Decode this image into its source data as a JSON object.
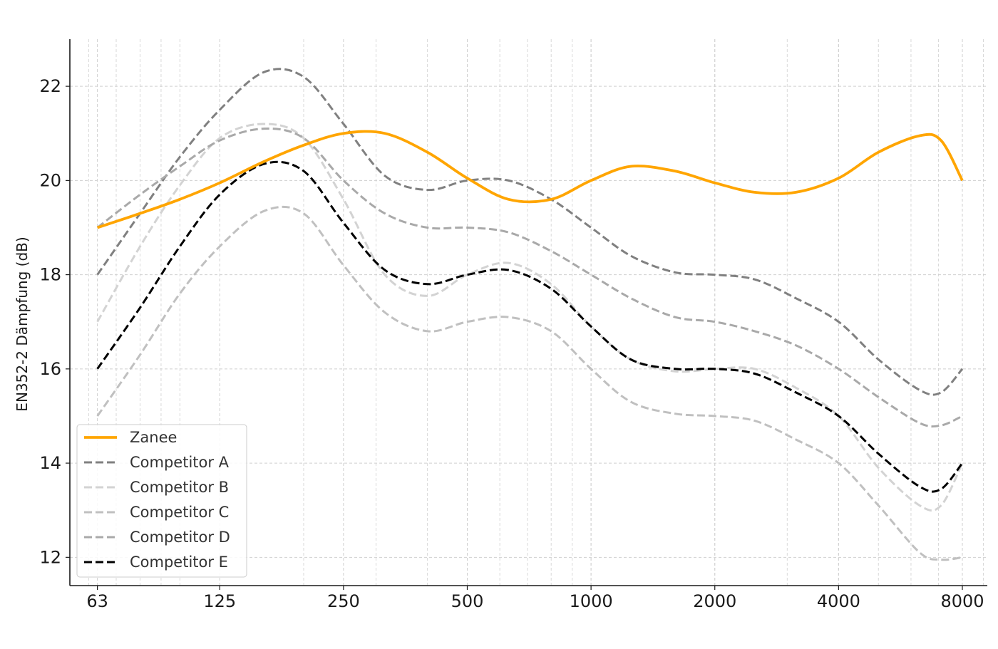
{
  "chart_data": {
    "type": "line",
    "title": "",
    "xlabel": "",
    "ylabel": "EN352-2 Dämpfung (dB)",
    "x_scale": "log2",
    "x_ticks": [
      63,
      125,
      250,
      500,
      1000,
      2000,
      4000,
      8000
    ],
    "x_tick_labels": [
      "63",
      "125",
      "250",
      "500",
      "1000",
      "2000",
      "4000",
      "8000"
    ],
    "y_ticks": [
      12,
      14,
      16,
      18,
      20,
      22
    ],
    "y_tick_labels": [
      "12",
      "14",
      "16",
      "18",
      "20",
      "22"
    ],
    "ylim": [
      11.4,
      23.0
    ],
    "xlim": [
      54,
      9200
    ],
    "grid": true,
    "legend_position": "lower-left",
    "series": [
      {
        "name": "Zanee",
        "color": "#FFA500",
        "style": "solid",
        "x": [
          63,
          80,
          100,
          125,
          160,
          200,
          250,
          315,
          400,
          500,
          630,
          800,
          1000,
          1250,
          1600,
          2000,
          2500,
          3150,
          4000,
          5000,
          6300,
          7100,
          8000
        ],
        "y": [
          19.0,
          19.3,
          19.6,
          19.95,
          20.4,
          20.75,
          21.0,
          21.0,
          20.6,
          20.05,
          19.6,
          19.6,
          20.0,
          20.3,
          20.2,
          19.95,
          19.75,
          19.75,
          20.05,
          20.6,
          20.95,
          20.85,
          20.0
        ]
      },
      {
        "name": "Competitor A",
        "color": "#808080",
        "style": "dashed",
        "x": [
          63,
          80,
          100,
          125,
          160,
          200,
          250,
          315,
          400,
          500,
          630,
          800,
          1000,
          1250,
          1600,
          2000,
          2500,
          3150,
          4000,
          5000,
          6300,
          7100,
          8000
        ],
        "y": [
          18.0,
          19.3,
          20.5,
          21.5,
          22.3,
          22.2,
          21.2,
          20.1,
          19.8,
          20.0,
          20.0,
          19.6,
          19.0,
          18.4,
          18.05,
          18.0,
          17.9,
          17.5,
          17.0,
          16.2,
          15.55,
          15.5,
          16.0
        ]
      },
      {
        "name": "Competitor B",
        "color": "#d3d3d3",
        "style": "dashed",
        "x": [
          63,
          80,
          100,
          125,
          160,
          200,
          250,
          315,
          400,
          500,
          630,
          800,
          1000,
          1250,
          1600,
          2000,
          2500,
          3150,
          4000,
          5000,
          6300,
          7100,
          8000
        ],
        "y": [
          17.0,
          18.6,
          19.9,
          20.9,
          21.2,
          20.9,
          19.6,
          18.0,
          17.55,
          18.0,
          18.25,
          17.8,
          16.9,
          16.2,
          15.95,
          16.0,
          16.0,
          15.6,
          15.0,
          13.9,
          13.1,
          13.1,
          14.0
        ]
      },
      {
        "name": "Competitor C",
        "color": "#c0c0c0",
        "style": "dashed",
        "x": [
          63,
          80,
          100,
          125,
          160,
          200,
          250,
          315,
          400,
          500,
          630,
          800,
          1000,
          1250,
          1600,
          2000,
          2500,
          3150,
          4000,
          5000,
          6300,
          7100,
          8000
        ],
        "y": [
          15.0,
          16.3,
          17.6,
          18.6,
          19.35,
          19.3,
          18.2,
          17.2,
          16.8,
          17.0,
          17.1,
          16.8,
          16.0,
          15.3,
          15.05,
          15.0,
          14.9,
          14.5,
          14.0,
          13.1,
          12.1,
          11.95,
          12.0
        ]
      },
      {
        "name": "Competitor D",
        "color": "#a9a9a9",
        "style": "dashed",
        "x": [
          63,
          80,
          100,
          125,
          160,
          200,
          250,
          315,
          400,
          500,
          630,
          800,
          1000,
          1250,
          1600,
          2000,
          2500,
          3150,
          4000,
          5000,
          6300,
          7100,
          8000
        ],
        "y": [
          19.0,
          19.7,
          20.3,
          20.85,
          21.1,
          20.9,
          20.0,
          19.3,
          19.0,
          19.0,
          18.9,
          18.5,
          18.0,
          17.5,
          17.1,
          17.0,
          16.8,
          16.5,
          16.0,
          15.4,
          14.85,
          14.8,
          15.0
        ]
      },
      {
        "name": "Competitor E",
        "color": "#000000",
        "style": "dashed",
        "x": [
          63,
          80,
          100,
          125,
          160,
          200,
          250,
          315,
          400,
          500,
          630,
          800,
          1000,
          1250,
          1600,
          2000,
          2500,
          3150,
          4000,
          5000,
          6300,
          7100,
          8000
        ],
        "y": [
          16.0,
          17.3,
          18.6,
          19.7,
          20.35,
          20.2,
          19.1,
          18.1,
          17.8,
          18.0,
          18.1,
          17.7,
          16.9,
          16.2,
          16.0,
          16.0,
          15.9,
          15.5,
          15.0,
          14.2,
          13.5,
          13.45,
          14.0
        ]
      }
    ]
  }
}
